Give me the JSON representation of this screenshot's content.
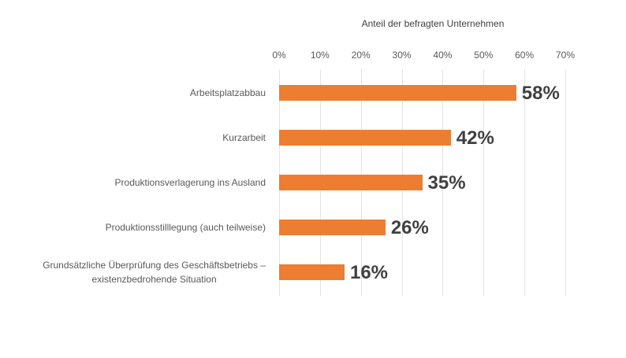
{
  "chart_data": {
    "type": "bar",
    "orientation": "horizontal",
    "title": "Anteil der befragten Unternehmen",
    "xlabel": "Anteil der befragten Unternehmen",
    "ylabel": "",
    "xlim": [
      0,
      70
    ],
    "x_ticks": [
      "0%",
      "10%",
      "20%",
      "30%",
      "40%",
      "50%",
      "60%",
      "70%"
    ],
    "x_tick_values": [
      0,
      10,
      20,
      30,
      40,
      50,
      60,
      70
    ],
    "grid": true,
    "categories": [
      [
        "Arbeitsplatzabbau"
      ],
      [
        "Kurzarbeit"
      ],
      [
        "Produktionsverlagerung ins Ausland"
      ],
      [
        "Produktionsstilllegung (auch teilweise)"
      ],
      [
        "Grundsätzliche Überprüfung des Geschäftsbetriebs –",
        "existenzbedrohende Situation"
      ]
    ],
    "values": [
      58,
      42,
      35,
      26,
      16
    ],
    "data_labels": [
      "58%",
      "42%",
      "35%",
      "26%",
      "16%"
    ],
    "bar_color": "#ed7d31"
  }
}
